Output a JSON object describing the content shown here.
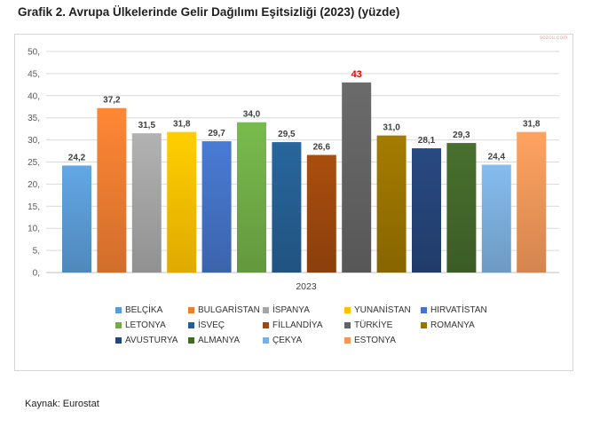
{
  "title": "Grafik 2. Avrupa Ülkelerinde Gelir Dağılımı Eşitsizliği (2023) (yüzde)",
  "watermark": "sozcu.com",
  "source": "Kaynak: Eurostat",
  "chart_data": {
    "type": "bar",
    "x_category": "2023",
    "ylim": [
      0,
      50
    ],
    "ytick_labels": [
      "0,",
      "5,",
      "10,",
      "15,",
      "20,",
      "25,",
      "30,",
      "35,",
      "40,",
      "45,",
      "50,"
    ],
    "ytick_values": [
      0,
      5,
      10,
      15,
      20,
      25,
      30,
      35,
      40,
      45,
      50
    ],
    "grid": true,
    "legend_position": "bottom",
    "series": [
      {
        "name": "BELÇİKA",
        "value": 24.2,
        "label": "24,2",
        "color": "#5b9bd5",
        "label_color": "#404040"
      },
      {
        "name": "BULGARİSTAN",
        "value": 37.2,
        "label": "37,2",
        "color": "#ed7d31",
        "label_color": "#404040"
      },
      {
        "name": "İSPANYA",
        "value": 31.5,
        "label": "31,5",
        "color": "#a5a5a5",
        "label_color": "#404040"
      },
      {
        "name": "YUNANİSTAN",
        "value": 31.8,
        "label": "31,8",
        "color": "#ffc000",
        "label_color": "#404040"
      },
      {
        "name": "HIRVATİSTAN",
        "value": 29.7,
        "label": "29,7",
        "color": "#4472c4",
        "label_color": "#404040"
      },
      {
        "name": "LETONYA",
        "value": 34.0,
        "label": "34,0",
        "color": "#70ad47",
        "label_color": "#404040"
      },
      {
        "name": "İSVEÇ",
        "value": 29.5,
        "label": "29,5",
        "color": "#255e91",
        "label_color": "#404040"
      },
      {
        "name": "FİLLANDİYA",
        "value": 26.6,
        "label": "26,6",
        "color": "#9e480e",
        "label_color": "#404040"
      },
      {
        "name": "TÜRKİYE",
        "value": 43,
        "label": "43",
        "color": "#636363",
        "label_color": "#e00000"
      },
      {
        "name": "ROMANYA",
        "value": 31.0,
        "label": "31,0",
        "color": "#997300",
        "label_color": "#404040"
      },
      {
        "name": "AVUSTURYA",
        "value": 28.1,
        "label": "28,1",
        "color": "#264478",
        "label_color": "#404040"
      },
      {
        "name": "ALMANYA",
        "value": 29.3,
        "label": "29,3",
        "color": "#43682b",
        "label_color": "#404040"
      },
      {
        "name": "ÇEKYA",
        "value": 24.4,
        "label": "24,4",
        "color": "#7cafdd",
        "label_color": "#404040"
      },
      {
        "name": "ESTONYA",
        "value": 31.8,
        "label": "31,8",
        "color": "#f1975a",
        "label_color": "#404040"
      }
    ]
  }
}
